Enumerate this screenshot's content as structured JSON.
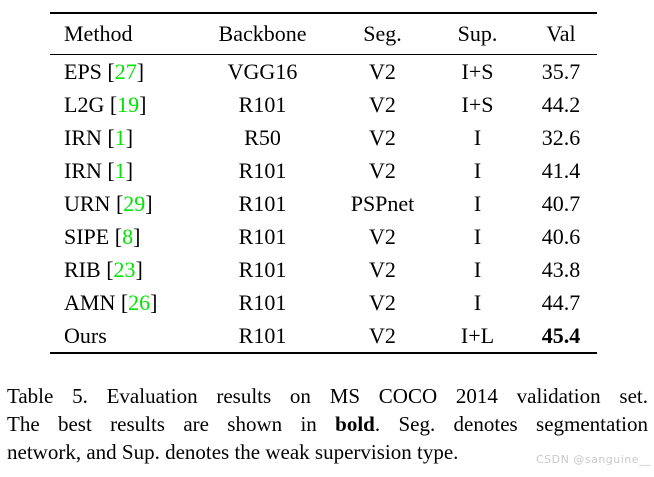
{
  "table": {
    "headers": [
      "Method",
      "Backbone",
      "Seg.",
      "Sup.",
      "Val"
    ],
    "rows": [
      {
        "method": "EPS",
        "cite": "27",
        "backbone": "VGG16",
        "seg": "V2",
        "sup": "I+S",
        "val": "35.7",
        "bold_val": false
      },
      {
        "method": "L2G",
        "cite": "19",
        "backbone": "R101",
        "seg": "V2",
        "sup": "I+S",
        "val": "44.2",
        "bold_val": false
      },
      {
        "method": "IRN",
        "cite": "1",
        "backbone": "R50",
        "seg": "V2",
        "sup": "I",
        "val": "32.6",
        "bold_val": false
      },
      {
        "method": "IRN",
        "cite": "1",
        "backbone": "R101",
        "seg": "V2",
        "sup": "I",
        "val": "41.4",
        "bold_val": false
      },
      {
        "method": "URN",
        "cite": "29",
        "backbone": "R101",
        "seg": "PSPnet",
        "sup": "I",
        "val": "40.7",
        "bold_val": false
      },
      {
        "method": "SIPE",
        "cite": "8",
        "backbone": "R101",
        "seg": "V2",
        "sup": "I",
        "val": "40.6",
        "bold_val": false
      },
      {
        "method": "RIB",
        "cite": "23",
        "backbone": "R101",
        "seg": "V2",
        "sup": "I",
        "val": "43.8",
        "bold_val": false
      },
      {
        "method": "AMN",
        "cite": "26",
        "backbone": "R101",
        "seg": "V2",
        "sup": "I",
        "val": "44.7",
        "bold_val": false
      },
      {
        "method": "Ours",
        "cite": null,
        "backbone": "R101",
        "seg": "V2",
        "sup": "I+L",
        "val": "45.4",
        "bold_val": true
      }
    ]
  },
  "caption": {
    "lines": [
      {
        "justify": true,
        "segments": [
          {
            "text": "Table 5.  Evaluation results on MS COCO 2014 validation set.",
            "bold": false
          }
        ]
      },
      {
        "justify": true,
        "segments": [
          {
            "text": "The best results are shown in ",
            "bold": false
          },
          {
            "text": "bold",
            "bold": true
          },
          {
            "text": ".  Seg.  denotes segmentation",
            "bold": false
          }
        ]
      },
      {
        "justify": false,
        "segments": [
          {
            "text": "network, and Sup. denotes the weak supervision type.",
            "bold": false
          }
        ]
      }
    ]
  },
  "watermark": "CSDN @sanguine__",
  "colors": {
    "citation_green": "#00e400",
    "text": "#000000",
    "watermark_gray": "#c9c9c9",
    "background": "#ffffff"
  }
}
